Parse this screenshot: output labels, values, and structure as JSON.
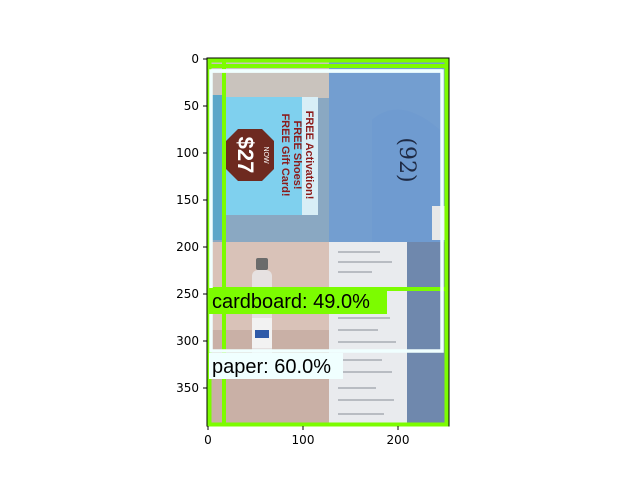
{
  "image": {
    "x_ticks": [
      "0",
      "100",
      "200"
    ],
    "y_ticks": [
      "0",
      "50",
      "100",
      "150",
      "200",
      "250",
      "300",
      "350"
    ]
  },
  "detections": [
    {
      "label": "cardboard: 49.0%",
      "color": "#7cfc00"
    },
    {
      "label": "paper: 60.0%",
      "color": "#f0ffff"
    }
  ],
  "scene": {
    "flyer_lines": [
      "FREE Activation!",
      "FREE Shoes!",
      "FREE Gift Card!"
    ],
    "flyer_price": "$27",
    "flyer_now": "NOW",
    "handwritten_mark": "(92)"
  }
}
